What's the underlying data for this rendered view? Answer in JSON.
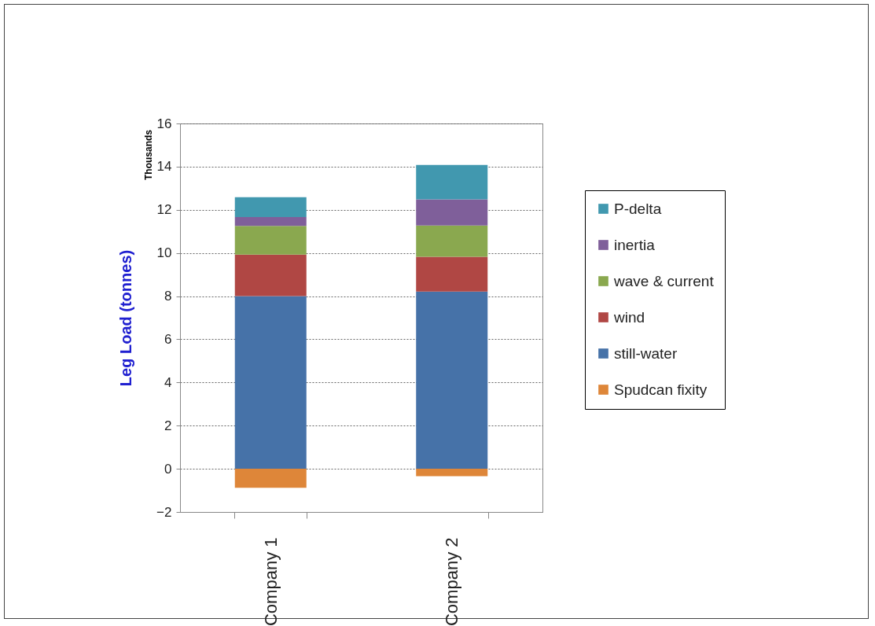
{
  "chart_data": {
    "type": "bar",
    "stacked": true,
    "ylabel": "Leg Load (tonnes)",
    "annotations": [
      "Thousands"
    ],
    "categories": [
      "Company 1",
      "Company 2"
    ],
    "series": [
      {
        "name": "Spudcan fixity",
        "color": "#de8639",
        "values": [
          -0.88,
          -0.34
        ]
      },
      {
        "name": "still-water",
        "color": "#4672a8",
        "values": [
          8.0,
          8.21
        ]
      },
      {
        "name": "wind",
        "color": "#b04744",
        "values": [
          1.92,
          1.61
        ]
      },
      {
        "name": "wave & current",
        "color": "#8aa84f",
        "values": [
          1.33,
          1.45
        ]
      },
      {
        "name": "inertia",
        "color": "#7f5f9a",
        "values": [
          0.41,
          1.21
        ]
      },
      {
        "name": "P-delta",
        "color": "#4198af",
        "values": [
          0.92,
          1.6
        ]
      }
    ],
    "ylim": [
      -2,
      16
    ],
    "yticks": [
      -2,
      0,
      2,
      4,
      6,
      8,
      10,
      12,
      14,
      16
    ],
    "grid": "y",
    "legend": "right"
  }
}
